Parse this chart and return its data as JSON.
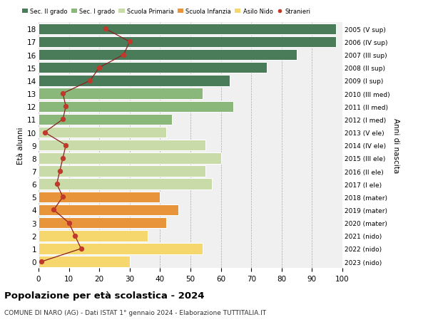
{
  "ages": [
    0,
    1,
    2,
    3,
    4,
    5,
    6,
    7,
    8,
    9,
    10,
    11,
    12,
    13,
    14,
    15,
    16,
    17,
    18
  ],
  "bar_values": [
    30,
    54,
    36,
    42,
    46,
    40,
    57,
    55,
    60,
    55,
    42,
    44,
    64,
    54,
    63,
    75,
    85,
    98,
    98
  ],
  "stranieri_values": [
    1,
    14,
    12,
    10,
    5,
    8,
    6,
    7,
    8,
    9,
    2,
    8,
    9,
    8,
    17,
    20,
    28,
    30,
    22
  ],
  "right_labels": [
    "2023 (nido)",
    "2022 (nido)",
    "2021 (nido)",
    "2020 (mater)",
    "2019 (mater)",
    "2018 (mater)",
    "2017 (I ele)",
    "2016 (II ele)",
    "2015 (III ele)",
    "2014 (IV ele)",
    "2013 (V ele)",
    "2012 (I med)",
    "2011 (II med)",
    "2010 (III med)",
    "2009 (I sup)",
    "2008 (II sup)",
    "2007 (III sup)",
    "2006 (IV sup)",
    "2005 (V sup)"
  ],
  "bar_colors": [
    "#f5d76e",
    "#f5d76e",
    "#f5d76e",
    "#e8943a",
    "#e8943a",
    "#e8943a",
    "#c8dba8",
    "#c8dba8",
    "#c8dba8",
    "#c8dba8",
    "#c8dba8",
    "#8ab87a",
    "#8ab87a",
    "#8ab87a",
    "#4a7c59",
    "#4a7c59",
    "#4a7c59",
    "#4a7c59",
    "#4a7c59"
  ],
  "legend_labels": [
    "Sec. II grado",
    "Sec. I grado",
    "Scuola Primaria",
    "Scuola Infanzia",
    "Asilo Nido",
    "Stranieri"
  ],
  "legend_colors": [
    "#4a7c59",
    "#8ab87a",
    "#c8dba8",
    "#e8943a",
    "#f5d76e",
    "#c0392b"
  ],
  "title": "Popolazione per età scolastica - 2024",
  "subtitle": "COMUNE DI NARO (AG) - Dati ISTAT 1° gennaio 2024 - Elaborazione TUTTITALIA.IT",
  "ylabel_left": "Età alunni",
  "ylabel_right": "Anni di nascita",
  "xlim": [
    0,
    100
  ],
  "xticks": [
    0,
    10,
    20,
    30,
    40,
    50,
    60,
    70,
    80,
    90,
    100
  ],
  "background_color": "#ffffff",
  "plot_bg_color": "#f0f0f0",
  "stranieri_color": "#c0392b",
  "line_color": "#8b2020"
}
